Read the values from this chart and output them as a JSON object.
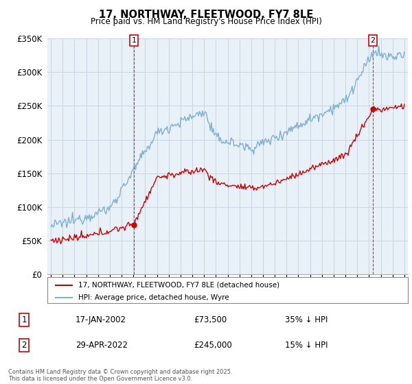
{
  "title": "17, NORTHWAY, FLEETWOOD, FY7 8LE",
  "subtitle": "Price paid vs. HM Land Registry's House Price Index (HPI)",
  "legend_label_red": "17, NORTHWAY, FLEETWOOD, FY7 8LE (detached house)",
  "legend_label_blue": "HPI: Average price, detached house, Wyre",
  "sale1_date_label": "17-JAN-2002",
  "sale1_price_label": "£73,500",
  "sale1_hpi_label": "35% ↓ HPI",
  "sale2_date_label": "29-APR-2022",
  "sale2_price_label": "£245,000",
  "sale2_hpi_label": "15% ↓ HPI",
  "footnote": "Contains HM Land Registry data © Crown copyright and database right 2025.\nThis data is licensed under the Open Government Licence v3.0.",
  "red_color": "#cc0000",
  "blue_color": "#7bafd4",
  "vline_color": "#cc0000",
  "chart_bg": "#e8f0f8",
  "ylim": [
    0,
    350000
  ],
  "yticks": [
    0,
    50000,
    100000,
    150000,
    200000,
    250000,
    300000,
    350000
  ],
  "ytick_labels": [
    "£0",
    "£50K",
    "£100K",
    "£150K",
    "£200K",
    "£250K",
    "£300K",
    "£350K"
  ],
  "sale1_year": 2002.04,
  "sale1_price": 73500,
  "sale2_year": 2022.33,
  "sale2_price": 245000,
  "background_color": "#ffffff",
  "grid_color": "#c8d4e0"
}
